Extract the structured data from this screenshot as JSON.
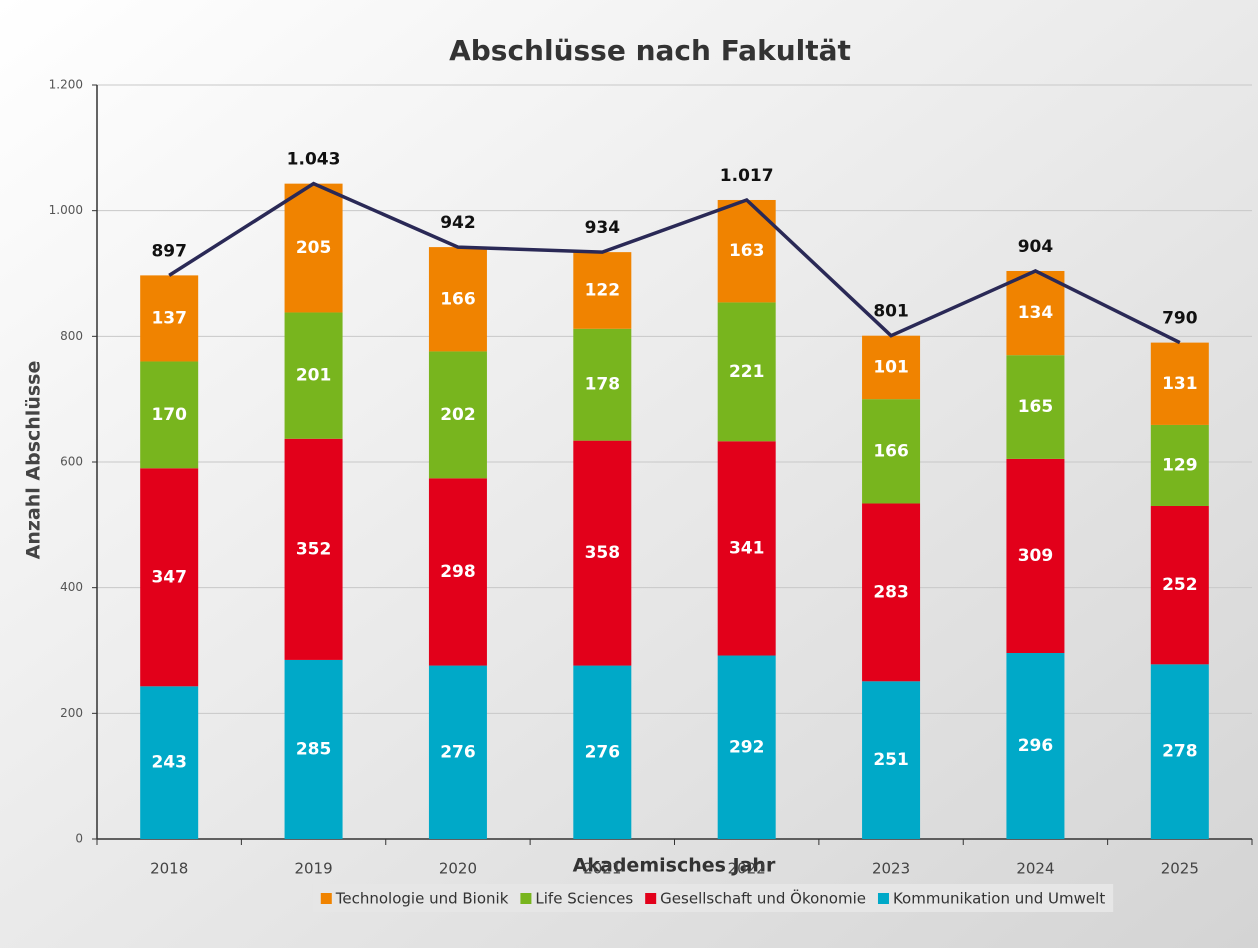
{
  "chart_data": {
    "type": "bar",
    "stacked": true,
    "title": "Abschlüsse nach Fakultät",
    "x_label": "Akademisches Jahr",
    "y_label": "Anzahl Abschlüsse",
    "categories": [
      "2018",
      "2019",
      "2020",
      "2021",
      "2022",
      "2023",
      "2024",
      "2025"
    ],
    "series": [
      {
        "name": "Kommunikation und Umwelt",
        "color": "#00a9c8",
        "values": [
          243,
          285,
          276,
          276,
          292,
          251,
          296,
          278
        ]
      },
      {
        "name": "Gesellschaft und Ökonomie",
        "color": "#e2001a",
        "values": [
          347,
          352,
          298,
          358,
          341,
          283,
          309,
          252
        ]
      },
      {
        "name": "Life Sciences",
        "color": "#78b51e",
        "values": [
          170,
          201,
          202,
          178,
          221,
          166,
          165,
          129
        ]
      },
      {
        "name": "Technologie und Bionik",
        "color": "#f08300",
        "values": [
          137,
          205,
          166,
          122,
          163,
          101,
          134,
          131
        ]
      }
    ],
    "totals": {
      "color": "#2a2956",
      "values": [
        897,
        1043,
        942,
        934,
        1017,
        801,
        904,
        790
      ],
      "value_labels": [
        "897",
        "1.043",
        "942",
        "934",
        "1.017",
        "801",
        "904",
        "790"
      ]
    },
    "ylim": [
      0,
      1200
    ],
    "yticks": [
      0,
      200,
      400,
      600,
      800,
      {
        "value": 1000,
        "label": "1.000"
      },
      {
        "value": 1200,
        "label": "1.200"
      }
    ],
    "grid": true,
    "legend": "bottom"
  }
}
